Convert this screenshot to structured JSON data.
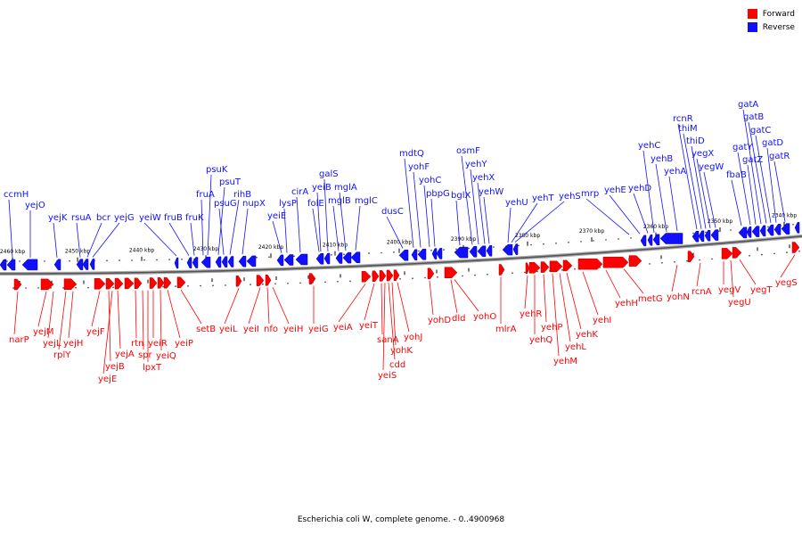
{
  "legend": {
    "forward_label": "Forward",
    "reverse_label": "Reverse",
    "forward_color": "#ff0000",
    "reverse_color": "#1010ff"
  },
  "caption": "Escherichia coli W, complete genome. - 0..4900968",
  "ticks": [
    "2460 kbp",
    "2450 kbp",
    "2440 kbp",
    "2430 kbp",
    "2420 kbp",
    "2410 kbp",
    "2400 kbp",
    "2390 kbp",
    "2380 kbp",
    "2370 kbp",
    "2360 kbp",
    "2350 kbp",
    "2340 kbp"
  ],
  "reverse_genes": [
    "ccmH",
    "yejO",
    "yejK",
    "rsuA",
    "bcr",
    "yejG",
    "yeiW",
    "fruB",
    "fruK",
    "fruA",
    "psuK",
    "psuT",
    "psuG",
    "rihB",
    "nupX",
    "yeiE",
    "lysP",
    "cirA",
    "yeiB",
    "folE",
    "galS",
    "mglB",
    "mglA",
    "mglC",
    "dusC",
    "mdtQ",
    "yohF",
    "yohC",
    "pbpG",
    "bglX",
    "osmF",
    "yehY",
    "yehX",
    "yehW",
    "yehU",
    "yehT",
    "yehS",
    "mrp",
    "yehE",
    "yehD",
    "yehC",
    "yehB",
    "yehA",
    "rcnR",
    "thiM",
    "thiD",
    "yegX",
    "yegW",
    "fbaB",
    "gatY",
    "gatZ",
    "gatA",
    "gatB",
    "gatC",
    "gatD",
    "gatR"
  ],
  "forward_genes": [
    "narP",
    "yejM",
    "yejL",
    "rplY",
    "yejH",
    "yejF",
    "yejB",
    "yejE",
    "yejA",
    "rtn",
    "spr",
    "lpxT",
    "yeiR",
    "yeiQ",
    "yeiP",
    "setB",
    "yeiL",
    "yeiI",
    "nfo",
    "yeiH",
    "yeiG",
    "yeiA",
    "yeiT",
    "sanA",
    "yohK",
    "cdd",
    "yeiS",
    "yohJ",
    "yohD",
    "dld",
    "yohO",
    "mlrA",
    "yehR",
    "yehQ",
    "yehP",
    "yehM",
    "yehL",
    "yehK",
    "yehI",
    "yehH",
    "metG",
    "yohN",
    "rcnA",
    "yegV",
    "yegU",
    "yegT",
    "yegS"
  ]
}
